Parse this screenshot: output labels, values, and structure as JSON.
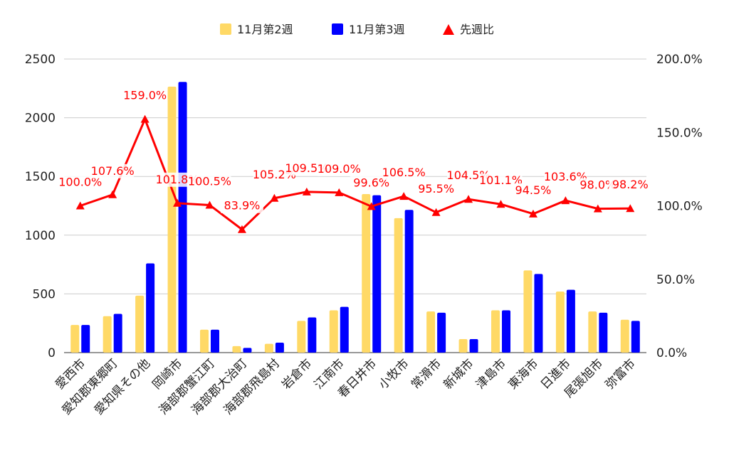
{
  "chart_data": {
    "type": "bar",
    "categories": [
      "愛西市",
      "愛知郡東郷町",
      "愛知県その他",
      "岡崎市",
      "海部郡蟹江町",
      "海部郡大治町",
      "海部郡飛島村",
      "岩倉市",
      "江南市",
      "春日井市",
      "小牧市",
      "常滑市",
      "新城市",
      "津島市",
      "東海市",
      "日進市",
      "尾張旭市",
      "弥富市"
    ],
    "series": [
      {
        "name": "11月第2週",
        "color": "#ffd966",
        "axis": "left",
        "values": [
          235,
          310,
          485,
          2265,
          195,
          55,
          75,
          270,
          360,
          1350,
          1145,
          350,
          115,
          360,
          700,
          520,
          350,
          280
        ]
      },
      {
        "name": "11月第3週",
        "color": "#0000ff",
        "axis": "left",
        "values": [
          235,
          330,
          760,
          2305,
          195,
          40,
          85,
          300,
          390,
          1340,
          1215,
          340,
          115,
          360,
          670,
          535,
          340,
          270
        ]
      }
    ],
    "line_series": {
      "name": "先週比",
      "color": "#ff0000",
      "axis": "right",
      "values": [
        100.0,
        107.6,
        159.0,
        101.8,
        100.5,
        83.9,
        105.2,
        109.5,
        109.0,
        99.6,
        106.5,
        95.5,
        104.5,
        101.1,
        94.5,
        103.6,
        98.0,
        98.2
      ],
      "labels": [
        "100.0%",
        "107.6%",
        "159.0%",
        "101.8%",
        "100.5%",
        "83.9%",
        "105.2%",
        "109.5%",
        "109.0%",
        "99.6%",
        "106.5%",
        "95.5%",
        "104.5%",
        "101.1%",
        "94.5%",
        "103.6%",
        "98.0%",
        "98.2%"
      ]
    },
    "left_axis": {
      "min": 0,
      "max": 2500,
      "ticks": [
        0,
        500,
        1000,
        1500,
        2000,
        2500
      ],
      "tick_labels": [
        "0",
        "500",
        "1000",
        "1500",
        "2000",
        "2500"
      ]
    },
    "right_axis": {
      "min": 0,
      "max": 200,
      "ticks": [
        0,
        50,
        100,
        150,
        200
      ],
      "tick_labels": [
        "0.0%",
        "50.0%",
        "100.0%",
        "150.0%",
        "200.0%"
      ]
    },
    "legend_position": "top",
    "legend": [
      {
        "label": "11月第2週",
        "marker": "square",
        "color": "#ffd966"
      },
      {
        "label": "11月第3週",
        "marker": "square",
        "color": "#0000ff"
      },
      {
        "label": "先週比",
        "marker": "triangle",
        "color": "#ff0000"
      }
    ],
    "grid": true
  }
}
